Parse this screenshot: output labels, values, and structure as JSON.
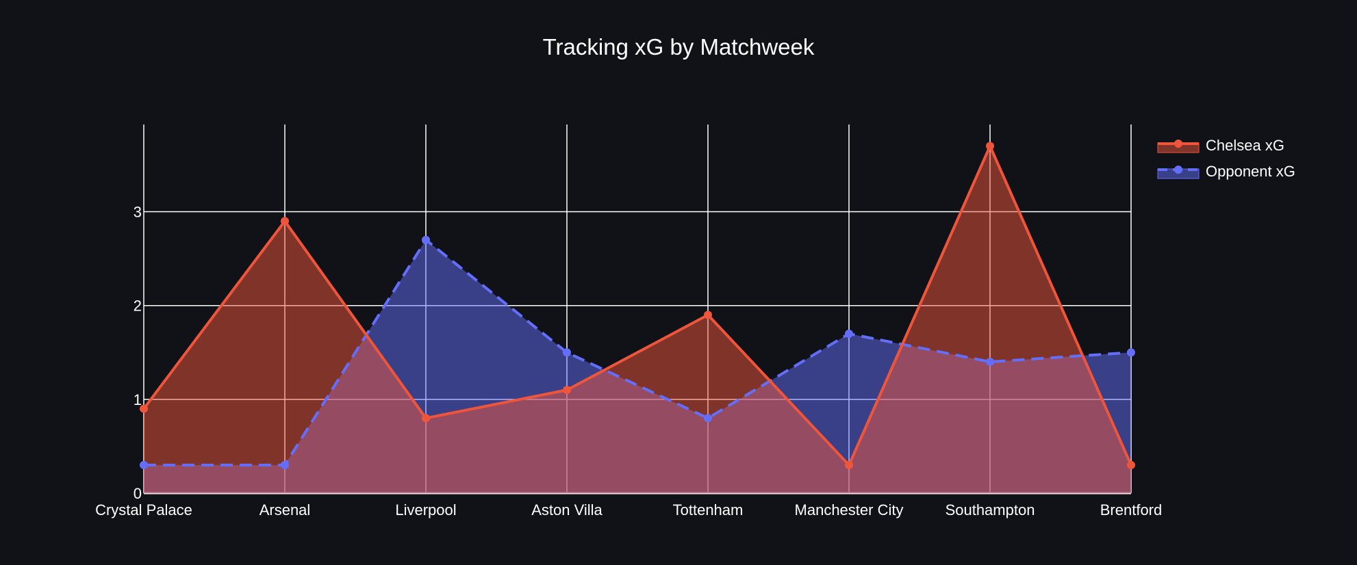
{
  "chart_data": {
    "type": "area",
    "title": "Tracking xG by Matchweek",
    "xlabel": "",
    "ylabel": "",
    "categories": [
      "Crystal Palace",
      "Arsenal",
      "Liverpool",
      "Aston Villa",
      "Tottenham",
      "Manchester City",
      "Southampton",
      "Brentford"
    ],
    "ylim": [
      0,
      3.93
    ],
    "yticks": [
      0,
      1,
      2,
      3
    ],
    "grid": true,
    "legend_position": "top-right",
    "series": [
      {
        "name": "Opponent xG",
        "values": [
          0.3,
          0.3,
          2.7,
          1.5,
          0.8,
          1.7,
          1.4,
          1.5
        ],
        "line_color": "#636efa",
        "fill_color": "rgba(99,110,250,0.5)",
        "line_style": "dash"
      },
      {
        "name": "Chelsea xG",
        "values": [
          0.9,
          2.9,
          0.8,
          1.1,
          1.9,
          0.3,
          3.7,
          0.3
        ],
        "line_color": "#ef553b",
        "fill_color": "rgba(239,85,59,0.5)",
        "line_style": "solid"
      }
    ]
  }
}
